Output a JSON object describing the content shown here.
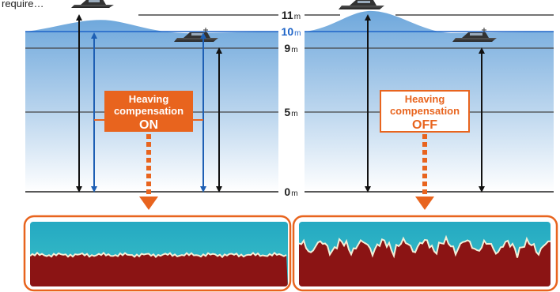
{
  "caption_fragment": "require…",
  "depth_scale": [
    {
      "value": "11",
      "unit": "m",
      "accent": false
    },
    {
      "value": "10",
      "unit": "m",
      "accent": true
    },
    {
      "value": "9",
      "unit": "m",
      "accent": false
    },
    {
      "value": "5",
      "unit": "m",
      "accent": false
    },
    {
      "value": "0",
      "unit": "m",
      "accent": false
    }
  ],
  "panels": [
    {
      "label_line1": "Heaving",
      "label_line2": "compensation",
      "state": "ON",
      "box_fill": "#e8641e",
      "box_text_color": "#ffffff"
    },
    {
      "label_line1": "Heaving",
      "label_line2": "compensation",
      "state": "OFF",
      "box_fill": "#ffffff",
      "box_text_color": "#e8641e"
    }
  ],
  "colors": {
    "sea_top": "#5b9bd5",
    "sea_bottom": "#ffffff",
    "accent_orange": "#e8641e",
    "surface_line": "#1e64c8",
    "arrow_black": "#111111",
    "arrow_blue": "#1e5fb4",
    "echo_water": "#2fb4c4",
    "echo_bottom": "#8b1414"
  }
}
